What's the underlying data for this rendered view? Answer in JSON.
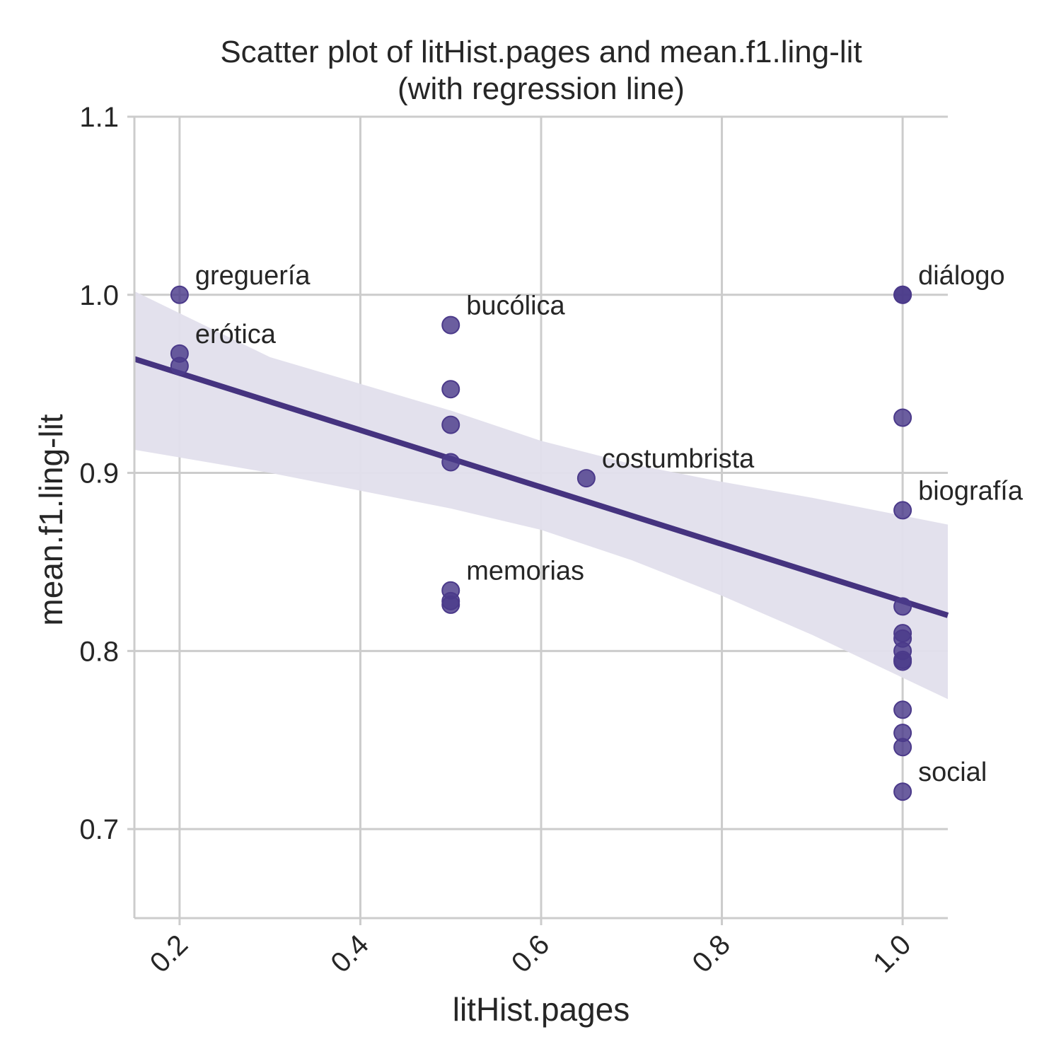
{
  "chart_data": {
    "type": "scatter",
    "title": "Scatter plot of litHist.pages and mean.f1.ling-lit",
    "subtitle": "(with regression line)",
    "xlabel": "litHist.pages",
    "ylabel": "mean.f1.ling-lit",
    "xlim": [
      0.15,
      1.05
    ],
    "ylim": [
      0.65,
      1.1
    ],
    "xticks": [
      "0.2",
      "0.4",
      "0.6",
      "0.8",
      "1.0"
    ],
    "yticks": [
      "0.7",
      "0.8",
      "0.9",
      "1.0",
      "1.1"
    ],
    "grid": true,
    "colors": {
      "point": "#4b3a8a",
      "line": "#45337f",
      "band": "#e2dfec"
    },
    "points": [
      {
        "x": 0.2,
        "y": 1.0
      },
      {
        "x": 0.2,
        "y": 0.967
      },
      {
        "x": 0.2,
        "y": 0.96
      },
      {
        "x": 0.5,
        "y": 0.983
      },
      {
        "x": 0.5,
        "y": 0.947
      },
      {
        "x": 0.5,
        "y": 0.927
      },
      {
        "x": 0.5,
        "y": 0.906
      },
      {
        "x": 0.5,
        "y": 0.834
      },
      {
        "x": 0.5,
        "y": 0.828
      },
      {
        "x": 0.5,
        "y": 0.826
      },
      {
        "x": 0.65,
        "y": 0.897
      },
      {
        "x": 1.0,
        "y": 1.0
      },
      {
        "x": 1.0,
        "y": 1.0
      },
      {
        "x": 1.0,
        "y": 0.931
      },
      {
        "x": 1.0,
        "y": 0.879
      },
      {
        "x": 1.0,
        "y": 0.825
      },
      {
        "x": 1.0,
        "y": 0.81
      },
      {
        "x": 1.0,
        "y": 0.807
      },
      {
        "x": 1.0,
        "y": 0.8
      },
      {
        "x": 1.0,
        "y": 0.795
      },
      {
        "x": 1.0,
        "y": 0.794
      },
      {
        "x": 1.0,
        "y": 0.767
      },
      {
        "x": 1.0,
        "y": 0.754
      },
      {
        "x": 1.0,
        "y": 0.746
      },
      {
        "x": 1.0,
        "y": 0.721
      }
    ],
    "annotations": [
      {
        "text": "greguería",
        "x": 0.2,
        "y": 1.0
      },
      {
        "text": "erótica",
        "x": 0.2,
        "y": 0.967
      },
      {
        "text": "bucólica",
        "x": 0.5,
        "y": 0.983
      },
      {
        "text": "costumbrista",
        "x": 0.65,
        "y": 0.897
      },
      {
        "text": "memorias",
        "x": 0.5,
        "y": 0.834
      },
      {
        "text": "diálogo",
        "x": 1.0,
        "y": 1.0
      },
      {
        "text": "biografía",
        "x": 1.0,
        "y": 0.879
      },
      {
        "text": "social",
        "x": 1.0,
        "y": 0.721
      }
    ],
    "regression": {
      "x": [
        0.15,
        1.05
      ],
      "y": [
        0.964,
        0.82
      ],
      "ci_band": {
        "x": [
          0.15,
          0.3,
          0.5,
          0.6,
          0.7,
          0.8,
          0.9,
          1.05
        ],
        "upper": [
          1.002,
          0.965,
          0.935,
          0.918,
          0.905,
          0.895,
          0.886,
          0.871
        ],
        "lower": [
          0.913,
          0.9,
          0.88,
          0.868,
          0.851,
          0.831,
          0.809,
          0.773
        ]
      }
    }
  }
}
